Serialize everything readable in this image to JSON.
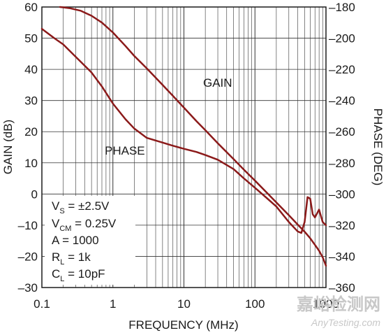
{
  "chart_data": {
    "type": "line",
    "xlabel": "FREQUENCY (MHz)",
    "ylabel_left": "GAIN (dB)",
    "ylabel_right": "PHASE (DEG)",
    "x_scale": "log",
    "xlim": [
      0.1,
      1000
    ],
    "ylim_left": [
      -30,
      60
    ],
    "ylim_right": [
      -360,
      -180
    ],
    "x_ticks": [
      "0.1",
      "1",
      "10",
      "100",
      "1000"
    ],
    "y_ticks_left": [
      "60",
      "50",
      "40",
      "30",
      "20",
      "10",
      "0",
      "-10",
      "-20",
      "-30"
    ],
    "y_ticks_right": [
      "-180",
      "-200",
      "-220",
      "-240",
      "-260",
      "-280",
      "-300",
      "-320",
      "-340",
      "-360"
    ],
    "grid": true,
    "line_color": "#8b1a1a",
    "series": [
      {
        "name": "GAIN",
        "axis": "left",
        "x": [
          0.18,
          0.25,
          0.35,
          0.5,
          0.7,
          1,
          1.5,
          2,
          3,
          5,
          7,
          10,
          15,
          20,
          30,
          50,
          70,
          100,
          150,
          200,
          300,
          400,
          500,
          600,
          700,
          800,
          900,
          1000
        ],
        "y": [
          60,
          59.6,
          58.8,
          57.2,
          55,
          51.8,
          47.5,
          44.3,
          40.3,
          35,
          31.5,
          27.7,
          23.4,
          20.5,
          16.3,
          11.2,
          7.8,
          4.3,
          0.2,
          -2.7,
          -6.8,
          -9.8,
          -12.1,
          -14.2,
          -16.3,
          -18.2,
          -20.3,
          -23
        ]
      },
      {
        "name": "PHASE",
        "axis": "right",
        "x": [
          0.1,
          0.15,
          0.2,
          0.3,
          0.5,
          0.7,
          1,
          1.5,
          2,
          3,
          5,
          7,
          10,
          15,
          20,
          30,
          50,
          70,
          100,
          150,
          200,
          300,
          400,
          450,
          500,
          550,
          600,
          650,
          700,
          800,
          900,
          1000
        ],
        "y": [
          -194,
          -200,
          -204,
          -212,
          -222,
          -231,
          -242,
          -252,
          -258,
          -264,
          -267,
          -269,
          -271,
          -273,
          -275,
          -278,
          -284,
          -290,
          -296,
          -303,
          -308,
          -318,
          -324,
          -325,
          -318,
          -302,
          -303,
          -313,
          -315,
          -310,
          -318,
          -320
        ]
      }
    ],
    "annotations": [
      {
        "text": "GAIN"
      },
      {
        "text": "PHASE"
      },
      {
        "text": "V",
        "sub": "S",
        "rest": " = ±2.5V"
      },
      {
        "text": "V",
        "sub": "CM",
        "rest": " = 0.25V"
      },
      {
        "text": "A = 1000"
      },
      {
        "text": "R",
        "sub": "L",
        "rest": " = 1k"
      },
      {
        "text": "C",
        "sub": "L",
        "rest": " = 10pF"
      }
    ]
  },
  "watermark": {
    "line1": "嘉峪检测网",
    "line2": "AnyTesting.com"
  }
}
